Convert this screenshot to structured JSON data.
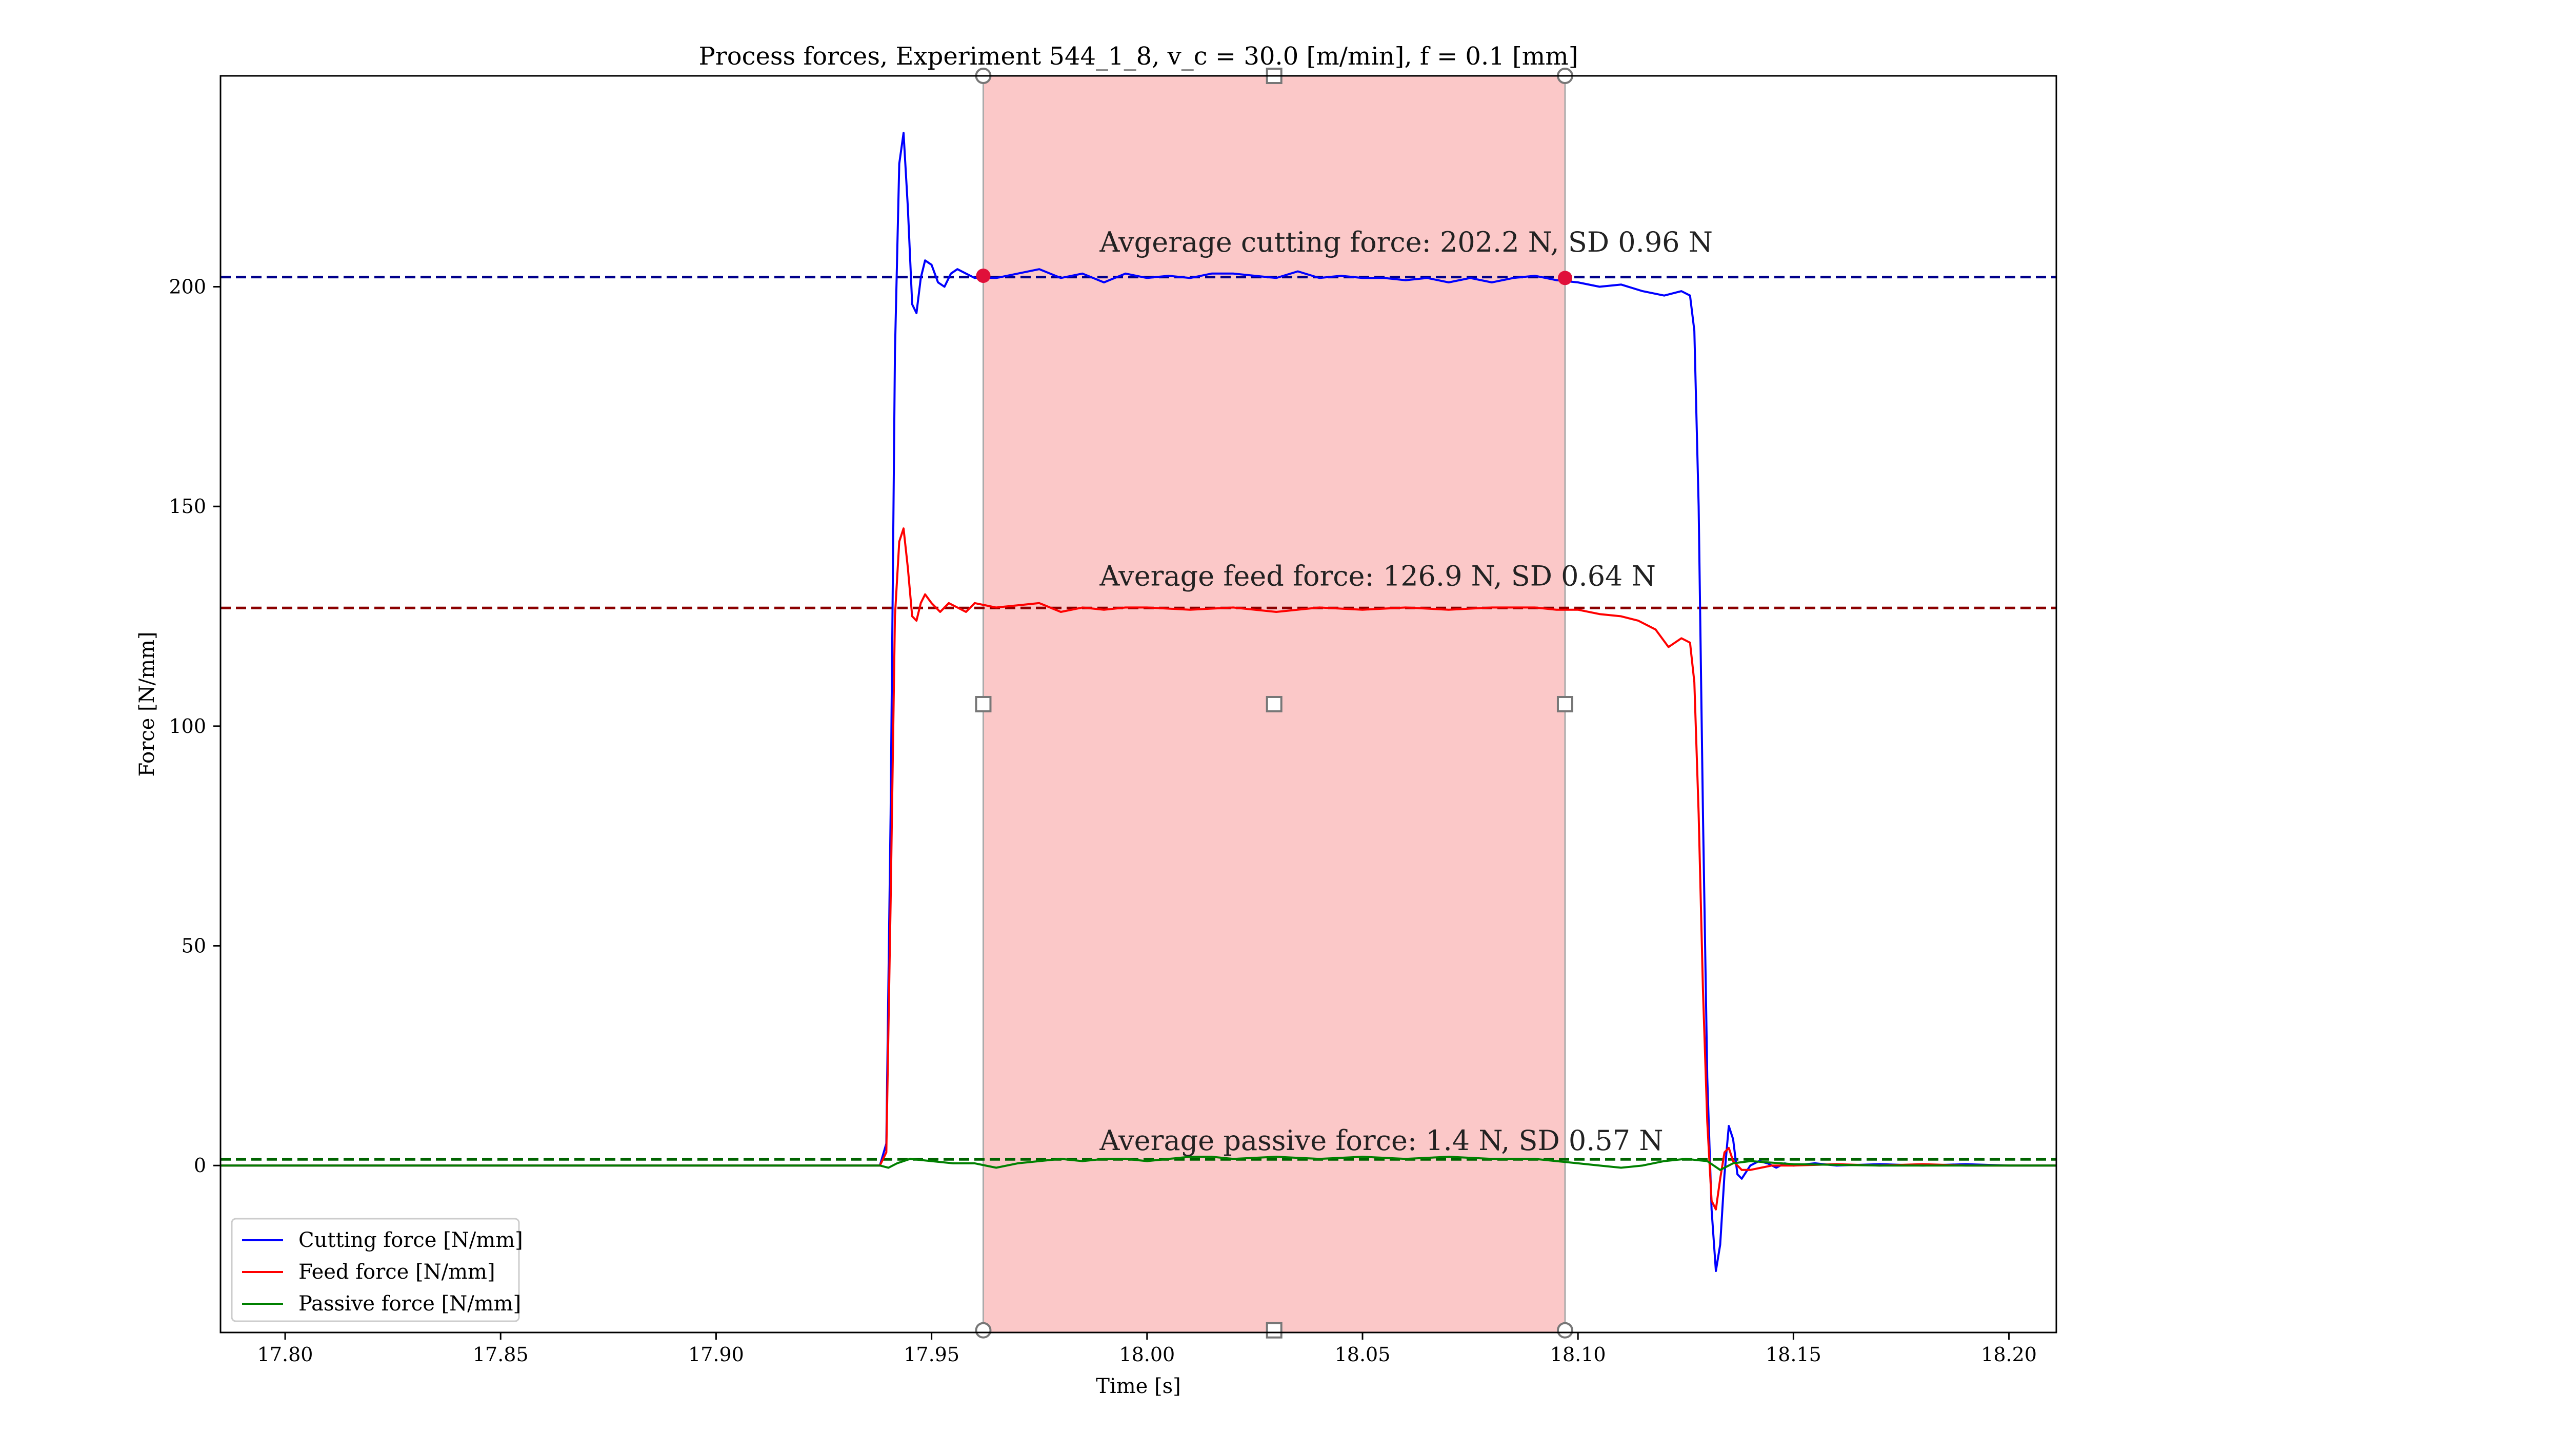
{
  "chart_data": {
    "type": "line",
    "title": "Process forces, Experiment 544_1_8, v_c = 30.0 [m/min], f = 0.1 [mm]",
    "xlabel": "Time [s]",
    "ylabel": "Force [N/mm]",
    "xlim": [
      17.785,
      18.211
    ],
    "ylim": [
      -38,
      248
    ],
    "xticks": [
      17.8,
      17.85,
      17.9,
      17.95,
      18.0,
      18.05,
      18.1,
      18.15,
      18.2
    ],
    "xtick_labels": [
      "17.80",
      "17.85",
      "17.90",
      "17.95",
      "18.00",
      "18.05",
      "18.10",
      "18.15",
      "18.20"
    ],
    "yticks": [
      0,
      50,
      100,
      150,
      200
    ],
    "ytick_labels": [
      "0",
      "50",
      "100",
      "150",
      "200"
    ],
    "grid": false,
    "legend_position": "lower-left",
    "highlight_region": {
      "x_start": 17.962,
      "x_end": 18.097,
      "color": "#fbc8c8"
    },
    "series": [
      {
        "name": "Cutting force [N/mm]",
        "color": "#0000ff",
        "x": [
          17.785,
          17.9,
          17.938,
          17.9395,
          17.9405,
          17.9415,
          17.9425,
          17.9435,
          17.9445,
          17.9455,
          17.9465,
          17.9475,
          17.9485,
          17.95,
          17.9515,
          17.953,
          17.9545,
          17.956,
          17.958,
          17.96,
          17.965,
          17.97,
          17.975,
          17.98,
          17.985,
          17.99,
          17.995,
          18.0,
          18.005,
          18.01,
          18.015,
          18.02,
          18.025,
          18.03,
          18.035,
          18.04,
          18.045,
          18.05,
          18.055,
          18.06,
          18.065,
          18.07,
          18.075,
          18.08,
          18.085,
          18.09,
          18.095,
          18.1,
          18.105,
          18.11,
          18.115,
          18.12,
          18.124,
          18.126,
          18.127,
          18.128,
          18.129,
          18.13,
          18.131,
          18.132,
          18.133,
          18.134,
          18.135,
          18.136,
          18.137,
          18.138,
          18.14,
          18.142,
          18.144,
          18.146,
          18.148,
          18.15,
          18.155,
          18.16,
          18.17,
          18.18,
          18.19,
          18.2,
          18.211
        ],
        "y": [
          0,
          0,
          0,
          5,
          80,
          185,
          228,
          235,
          218,
          196,
          194,
          202,
          206,
          205,
          201,
          200,
          203,
          204,
          203,
          202,
          202,
          203,
          204,
          202,
          203,
          201,
          203,
          202,
          202.5,
          202,
          203,
          203,
          202.5,
          202,
          203.5,
          202,
          202.5,
          202,
          202,
          201.5,
          202,
          201,
          202,
          201,
          202,
          202.5,
          201.5,
          201,
          200,
          200.5,
          199,
          198,
          199,
          198,
          190,
          150,
          80,
          20,
          -10,
          -24,
          -18,
          -2,
          9,
          6,
          -2,
          -3,
          0,
          1,
          0.5,
          -0.5,
          0.5,
          0,
          0.5,
          0,
          0.3,
          0,
          0.3,
          0,
          0
        ]
      },
      {
        "name": "Feed force [N/mm]",
        "color": "#ff0000",
        "x": [
          17.785,
          17.9,
          17.938,
          17.9395,
          17.9405,
          17.9415,
          17.9425,
          17.9435,
          17.9445,
          17.9455,
          17.9465,
          17.9475,
          17.9485,
          17.95,
          17.952,
          17.954,
          17.956,
          17.958,
          17.96,
          17.965,
          17.97,
          17.975,
          17.98,
          17.985,
          17.99,
          17.995,
          18.0,
          18.01,
          18.02,
          18.03,
          18.04,
          18.05,
          18.06,
          18.07,
          18.08,
          18.09,
          18.095,
          18.1,
          18.105,
          18.11,
          18.114,
          18.118,
          18.121,
          18.124,
          18.126,
          18.127,
          18.128,
          18.129,
          18.13,
          18.131,
          18.132,
          18.133,
          18.134,
          18.135,
          18.136,
          18.138,
          18.14,
          18.145,
          18.15,
          18.16,
          18.17,
          18.18,
          18.19,
          18.2,
          18.211
        ],
        "y": [
          0,
          0,
          0,
          3,
          60,
          125,
          142,
          145,
          136,
          125,
          124,
          128,
          130,
          128,
          126,
          128,
          127,
          126,
          128,
          127,
          127.5,
          128,
          126,
          127,
          126.5,
          127,
          127,
          126.5,
          127,
          126,
          127,
          126.5,
          127,
          126.5,
          127,
          127,
          126.5,
          126.5,
          125.5,
          125,
          124,
          122,
          118,
          120,
          119,
          110,
          80,
          40,
          10,
          -8,
          -10,
          -3,
          3,
          4,
          1,
          -1,
          -1,
          0,
          0,
          0.3,
          0,
          0.3,
          0,
          0,
          0
        ]
      },
      {
        "name": "Passive force [N/mm]",
        "color": "#008000",
        "x": [
          17.785,
          17.9,
          17.938,
          17.94,
          17.942,
          17.945,
          17.95,
          17.955,
          17.96,
          17.965,
          17.97,
          17.975,
          17.98,
          17.985,
          17.99,
          17.995,
          18.0,
          18.005,
          18.01,
          18.015,
          18.02,
          18.03,
          18.04,
          18.05,
          18.06,
          18.07,
          18.08,
          18.09,
          18.095,
          18.1,
          18.105,
          18.11,
          18.115,
          18.12,
          18.125,
          18.13,
          18.133,
          18.136,
          18.14,
          18.15,
          18.17,
          18.2,
          18.211
        ],
        "y": [
          0,
          0,
          0,
          -0.5,
          0.5,
          1.5,
          1,
          0.5,
          0.5,
          -0.5,
          0.5,
          1,
          1.5,
          1,
          1.5,
          1.5,
          1,
          1.5,
          2,
          2,
          1.5,
          2,
          1.5,
          2,
          1.5,
          2,
          1.5,
          1.5,
          1,
          0.5,
          0,
          -0.5,
          0,
          1,
          1.5,
          1,
          -1,
          0.5,
          1,
          0.3,
          0,
          0,
          0
        ]
      }
    ],
    "reference_lines": [
      {
        "y": 202.2,
        "color": "#00008b",
        "style": "dashed"
      },
      {
        "y": 126.9,
        "color": "#8b0000",
        "style": "dashed"
      },
      {
        "y": 1.4,
        "color": "#006400",
        "style": "dashed"
      }
    ],
    "annotations": [
      {
        "text": "Avgerage cutting force: 202.2 N, SD 0.96 N",
        "x": 17.989,
        "y": 208
      },
      {
        "text": "Average feed force: 126.9 N, SD 0.64 N",
        "x": 17.989,
        "y": 132
      },
      {
        "text": "Average passive force: 1.4 N, SD 0.57 N",
        "x": 17.989,
        "y": 3.5
      }
    ],
    "markers": [
      {
        "x": 17.962,
        "y": 202.5,
        "color": "#e0103a"
      },
      {
        "x": 18.097,
        "y": 202.0,
        "color": "#e0103a"
      }
    ],
    "selector_handles": {
      "circles": [
        [
          17.962,
          248
        ],
        [
          18.097,
          248
        ],
        [
          17.962,
          -37.5
        ],
        [
          18.097,
          -37.5
        ]
      ],
      "squares": [
        [
          18.0295,
          248
        ],
        [
          17.962,
          105
        ],
        [
          18.0295,
          105
        ],
        [
          18.097,
          105
        ],
        [
          18.0295,
          -37.5
        ]
      ]
    }
  }
}
